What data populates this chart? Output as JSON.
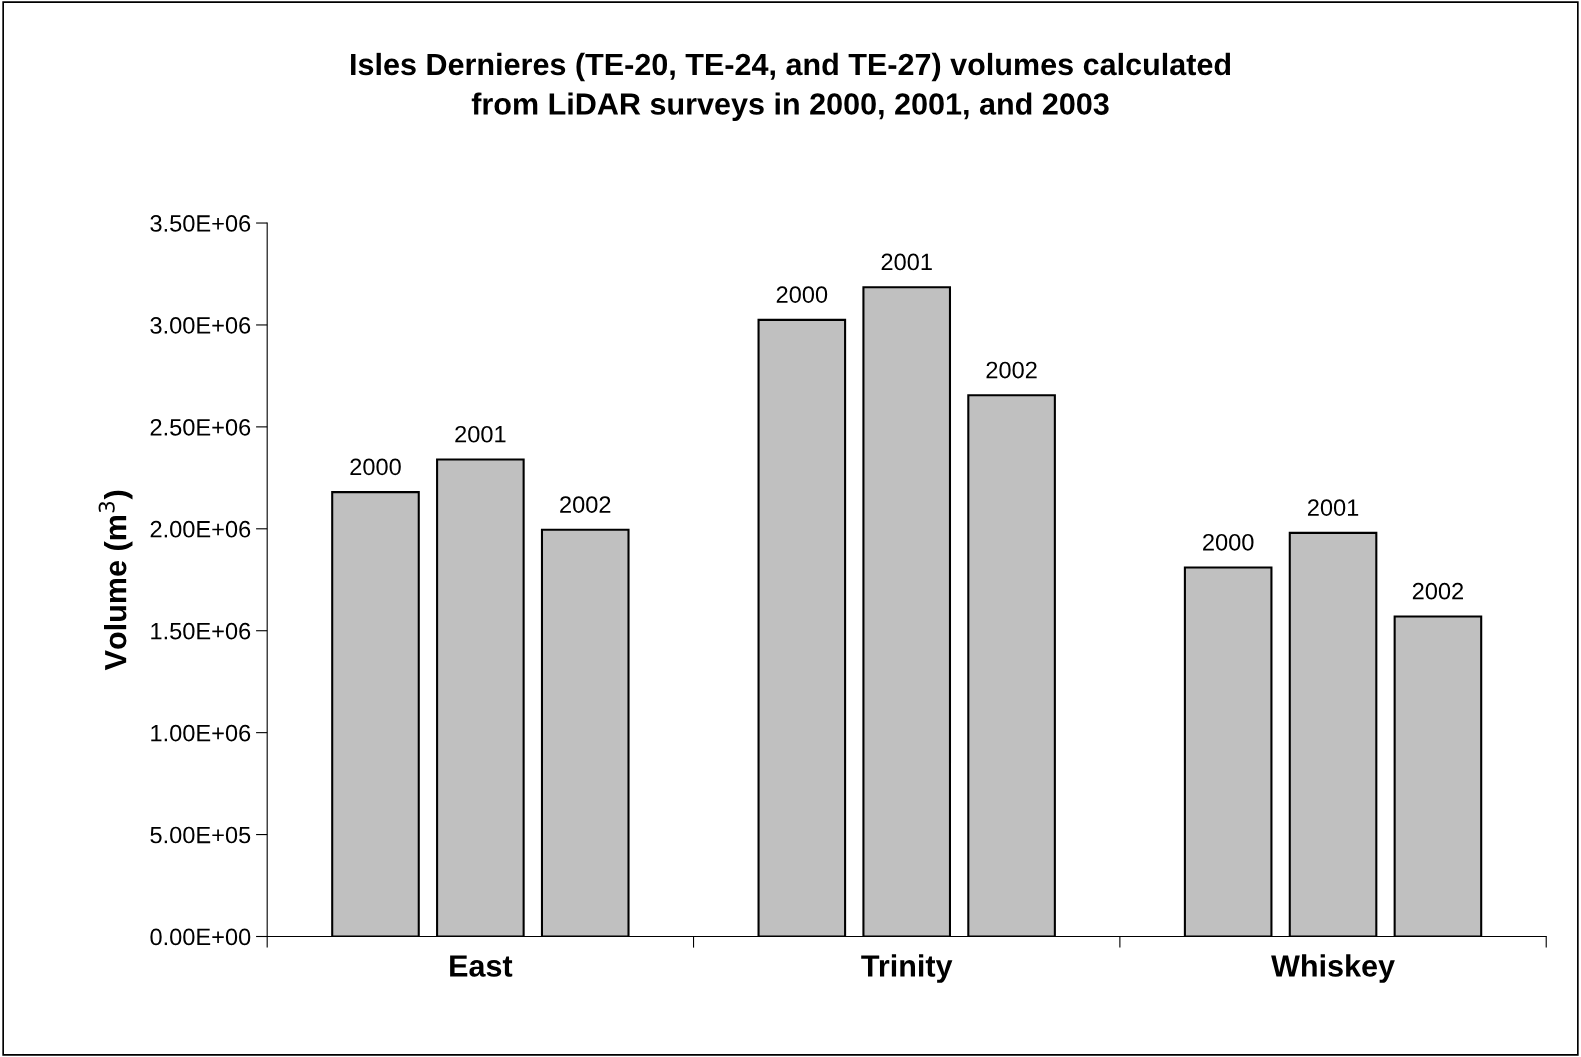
{
  "chart_data": {
    "type": "bar",
    "title": "Isles Dernieres (TE-20, TE-24, and TE-27) volumes calculated\nfrom LiDAR surveys in 2000, 2001, and 2003",
    "ylabel": "Volume (m$^{3}$)",
    "categories": [
      "East",
      "Trinity",
      "Whiskey"
    ],
    "series": [
      {
        "name": "2000",
        "color": "#c0c0c0",
        "values": [
          2180000,
          3025000,
          1810000
        ]
      },
      {
        "name": "2001",
        "color": "#c0c0c0",
        "values": [
          2340000,
          3185000,
          1980000
        ]
      },
      {
        "name": "2002",
        "color": "#c0c0c0",
        "values": [
          1995000,
          2655000,
          1570000
        ]
      }
    ],
    "ylim": [
      0,
      3500000
    ],
    "yticks": [
      {
        "value": 0,
        "label": "0.00E+00"
      },
      {
        "value": 500000,
        "label": "5.00E+05"
      },
      {
        "value": 1000000,
        "label": "1.00E+06"
      },
      {
        "value": 1500000,
        "label": "1.50E+06"
      },
      {
        "value": 2000000,
        "label": "2.00E+06"
      },
      {
        "value": 2500000,
        "label": "2.50E+06"
      },
      {
        "value": 3000000,
        "label": "3.00E+06"
      },
      {
        "value": 3500000,
        "label": "3.50E+06"
      }
    ],
    "grid": false,
    "legend": false
  }
}
